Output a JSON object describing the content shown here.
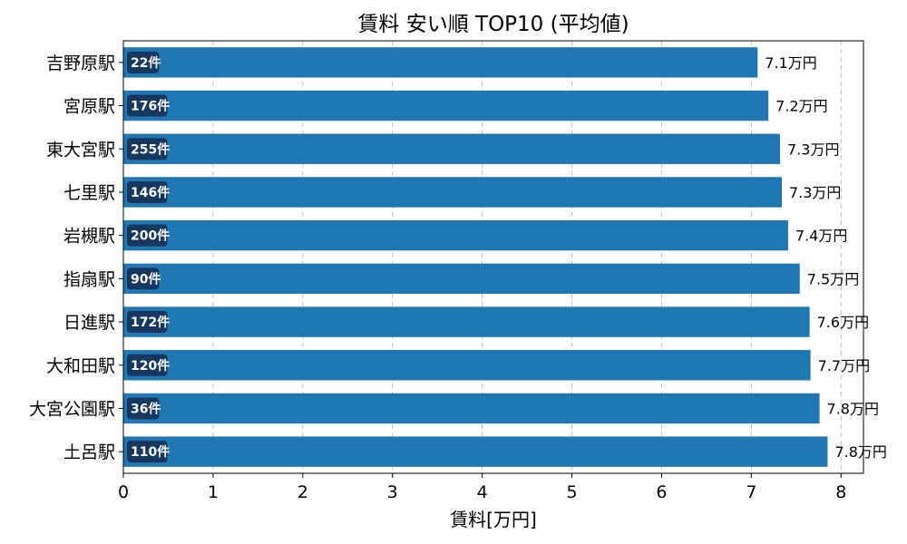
{
  "chart_data": {
    "type": "bar",
    "orientation": "horizontal",
    "title": "賃料 安い順 TOP10 (平均値)",
    "xlabel": "賃料[万円]",
    "ylabel": "",
    "xlim": [
      0,
      8.25
    ],
    "xticks": [
      "0",
      "1",
      "2",
      "3",
      "4",
      "5",
      "6",
      "7",
      "8"
    ],
    "grid": "vertical dashed",
    "categories": [
      "吉野原駅",
      "宮原駅",
      "東大宮駅",
      "七里駅",
      "岩槻駅",
      "指扇駅",
      "日進駅",
      "大和田駅",
      "大宮公園駅",
      "土呂駅"
    ],
    "values": [
      7.07,
      7.19,
      7.32,
      7.34,
      7.41,
      7.54,
      7.65,
      7.66,
      7.76,
      7.85
    ],
    "value_labels": [
      "7.1万円",
      "7.2万円",
      "7.3万円",
      "7.3万円",
      "7.4万円",
      "7.5万円",
      "7.6万円",
      "7.7万円",
      "7.8万円",
      "7.8万円"
    ],
    "count_labels": [
      "22件",
      "176件",
      "255件",
      "146件",
      "200件",
      "90件",
      "172件",
      "120件",
      "36件",
      "110件"
    ],
    "colors": {
      "bar": "#1f77b4",
      "badge": "#17375e",
      "grid": "#b0b0b0"
    }
  }
}
